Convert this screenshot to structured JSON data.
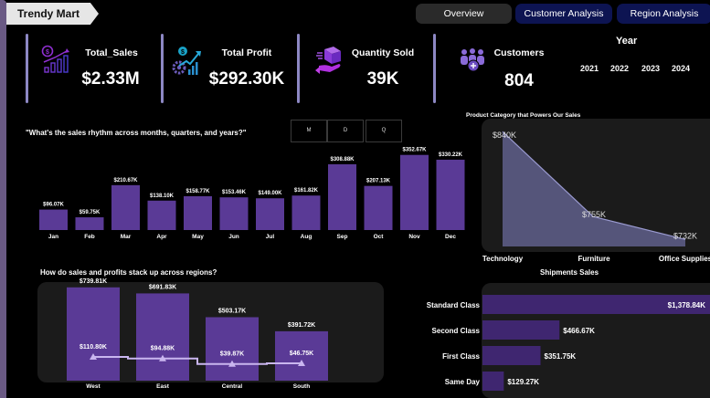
{
  "header": {
    "title": "Trendy Mart",
    "tabs": [
      {
        "label": "Overview",
        "active": true
      },
      {
        "label": "Customer Analysis",
        "active": false
      },
      {
        "label": "Region Analysis",
        "active": false
      }
    ]
  },
  "kpis": [
    {
      "label": "Total_Sales",
      "value": "$2.33M",
      "icon": "sales-growth-icon"
    },
    {
      "label": "Total Profit",
      "value": "$292.30K",
      "icon": "profit-growth-icon"
    },
    {
      "label": "Quantity Sold",
      "value": "39K",
      "icon": "package-hand-icon"
    },
    {
      "label": "Customers",
      "value": "804",
      "icon": "customers-group-icon"
    }
  ],
  "year_filter": {
    "title": "Year",
    "options": [
      "2021",
      "2022",
      "2023",
      "2024"
    ]
  },
  "granularity_buttons": [
    "M",
    "D",
    "Q"
  ],
  "colors": {
    "bar": "#5a3a96",
    "ship_bar": "#3f2670",
    "area_fill": "#55557a",
    "area_line": "#9a9ad0",
    "profit_line": "#c9b6ef",
    "panel": "#1b1b1b",
    "accent_sep": "#8d88c4"
  },
  "chart_data": [
    {
      "id": "monthly",
      "type": "bar",
      "title": "\"What's the sales rhythm across months, quarters, and years?\"",
      "categories": [
        "Jan",
        "Feb",
        "Mar",
        "Apr",
        "May",
        "Jun",
        "Jul",
        "Aug",
        "Sep",
        "Oct",
        "Nov",
        "Dec"
      ],
      "values": [
        96.07,
        59.75,
        210.67,
        138.1,
        158.77,
        153.46,
        149.0,
        161.82,
        308.88,
        207.13,
        352.67,
        330.22
      ],
      "labels": [
        "$96.07K",
        "$59.75K",
        "$210.67K",
        "$138.10K",
        "$158.77K",
        "$153.46K",
        "$149.00K",
        "$161.82K",
        "$308.88K",
        "$207.13K",
        "$352.67K",
        "$330.22K"
      ],
      "unit": "K USD",
      "xlabel": "",
      "ylabel": "Sales",
      "ylim": [
        0,
        360
      ],
      "grid": false
    },
    {
      "id": "category",
      "type": "area",
      "title": "Product Category that Powers Our Sales",
      "categories": [
        "Technology",
        "Furniture",
        "Office Supplies"
      ],
      "values": [
        840,
        755,
        732
      ],
      "labels": [
        "$840K",
        "$755K",
        "$732K"
      ],
      "unit": "K USD",
      "ylim": [
        725,
        842
      ],
      "grid": false
    },
    {
      "id": "regions",
      "type": "bar",
      "title": "How do sales and profits stack up across regions?",
      "categories": [
        "West",
        "East",
        "Central",
        "South"
      ],
      "series": [
        {
          "name": "Sales",
          "type": "bar",
          "values": [
            739.81,
            691.83,
            503.17,
            391.72
          ],
          "labels": [
            "$739.81K",
            "$691.83K",
            "$503.17K",
            "$391.72K"
          ]
        },
        {
          "name": "Profit",
          "type": "line",
          "values": [
            110.8,
            94.88,
            39.87,
            46.75
          ],
          "labels": [
            "$110.80K",
            "$94.88K",
            "$39.87K",
            "$46.75K"
          ]
        }
      ],
      "unit": "K USD",
      "ylim": [
        0,
        760
      ],
      "grid": false
    },
    {
      "id": "shipments",
      "type": "bar",
      "orientation": "horizontal",
      "title": "Shipments Sales",
      "categories": [
        "Standard Class",
        "Second Class",
        "First Class",
        "Same Day"
      ],
      "values": [
        1378.84,
        466.67,
        351.75,
        129.27
      ],
      "labels": [
        "$1,378.84K",
        "$466.67K",
        "$351.75K",
        "$129.27K"
      ],
      "unit": "K USD",
      "xlim": [
        0,
        1378.84
      ],
      "grid": false
    }
  ]
}
